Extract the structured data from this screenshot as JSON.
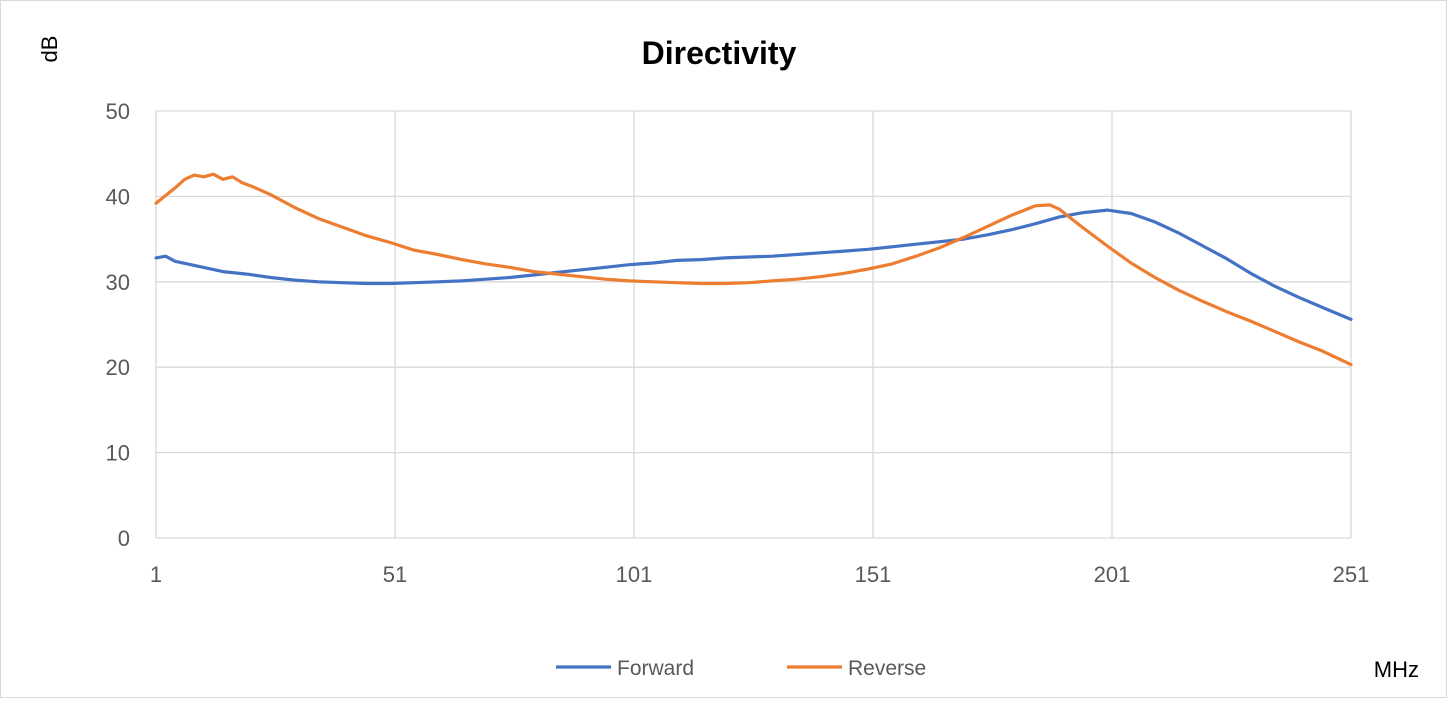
{
  "chart_data": {
    "type": "line",
    "title": "Directivity",
    "ylabel": "dB",
    "xlabel": "MHz",
    "xlim": [
      1,
      251
    ],
    "ylim": [
      0,
      50
    ],
    "x_ticks": [
      "1",
      "51",
      "101",
      "151",
      "201",
      "251"
    ],
    "y_ticks": [
      "0",
      "10",
      "20",
      "30",
      "40",
      "50"
    ],
    "grid": true,
    "legend_position": "bottom",
    "series": [
      {
        "name": "Forward",
        "color": "#4472c4",
        "x": [
          1,
          3,
          5,
          10,
          15,
          20,
          25,
          30,
          35,
          40,
          45,
          50,
          55,
          60,
          65,
          70,
          75,
          80,
          85,
          90,
          95,
          100,
          105,
          110,
          115,
          120,
          125,
          130,
          135,
          140,
          145,
          150,
          155,
          160,
          165,
          170,
          175,
          180,
          185,
          190,
          195,
          200,
          205,
          210,
          215,
          220,
          225,
          230,
          235,
          240,
          245,
          251
        ],
        "values": [
          32.8,
          33.0,
          32.4,
          31.8,
          31.2,
          30.9,
          30.5,
          30.2,
          30.0,
          29.9,
          29.8,
          29.8,
          29.9,
          30.0,
          30.1,
          30.3,
          30.5,
          30.8,
          31.1,
          31.4,
          31.7,
          32.0,
          32.2,
          32.5,
          32.6,
          32.8,
          32.9,
          33.0,
          33.2,
          33.4,
          33.6,
          33.8,
          34.1,
          34.4,
          34.7,
          35.0,
          35.5,
          36.1,
          36.8,
          37.6,
          38.1,
          38.4,
          38.0,
          37.0,
          35.7,
          34.2,
          32.7,
          31.0,
          29.5,
          28.2,
          27.0,
          25.6
        ]
      },
      {
        "name": "Reverse",
        "color": "#ed7d31",
        "x": [
          1,
          3,
          5,
          7,
          9,
          11,
          13,
          15,
          17,
          19,
          21,
          25,
          30,
          35,
          40,
          45,
          50,
          55,
          60,
          65,
          70,
          75,
          80,
          85,
          90,
          95,
          100,
          105,
          110,
          115,
          120,
          125,
          130,
          135,
          140,
          145,
          150,
          155,
          160,
          165,
          170,
          175,
          180,
          185,
          188,
          190,
          195,
          200,
          205,
          210,
          215,
          220,
          225,
          230,
          235,
          240,
          245,
          251
        ],
        "values": [
          39.2,
          40.1,
          41.0,
          42.0,
          42.5,
          42.3,
          42.6,
          42.0,
          42.3,
          41.6,
          41.2,
          40.2,
          38.7,
          37.4,
          36.4,
          35.4,
          34.6,
          33.7,
          33.2,
          32.6,
          32.1,
          31.7,
          31.2,
          30.9,
          30.6,
          30.3,
          30.1,
          30.0,
          29.9,
          29.8,
          29.8,
          29.9,
          30.1,
          30.3,
          30.6,
          31.0,
          31.5,
          32.1,
          33.0,
          34.0,
          35.2,
          36.5,
          37.8,
          38.9,
          39.0,
          38.5,
          36.3,
          34.2,
          32.2,
          30.5,
          29.0,
          27.7,
          26.5,
          25.4,
          24.2,
          23.0,
          21.9,
          20.3
        ]
      }
    ]
  }
}
